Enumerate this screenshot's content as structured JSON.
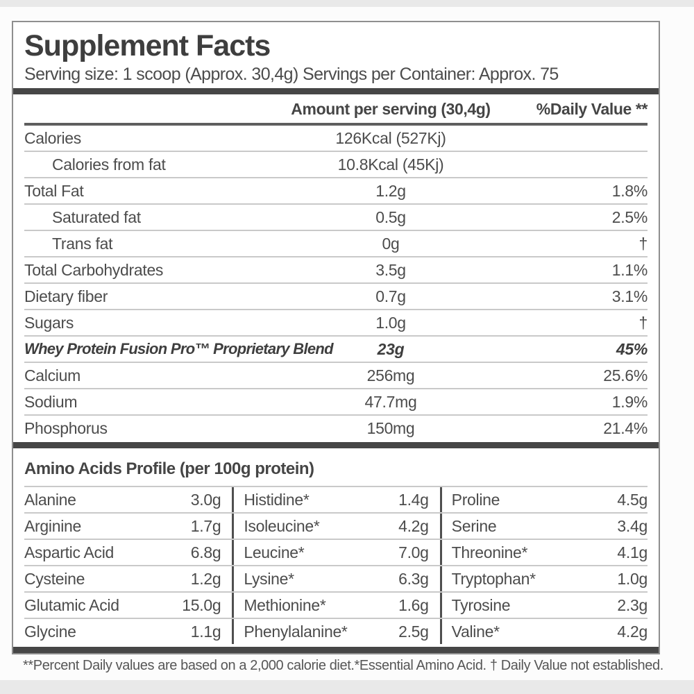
{
  "label": {
    "title": "Supplement Facts",
    "serving_line": "Serving size: 1 scoop (Approx. 30,4g) Servings per Container: Approx. 75",
    "columns": {
      "amount": "Amount per serving (30,4g)",
      "daily_value": "%Daily Value **"
    },
    "rows": [
      {
        "name": "Calories",
        "amount": "126Kcal (527Kj)",
        "dv": ""
      },
      {
        "name": "Calories from fat",
        "amount": "10.8Kcal (45Kj)",
        "dv": ""
      },
      {
        "name": "Total Fat",
        "amount": "1.2g",
        "dv": "1.8%"
      },
      {
        "name": "Saturated fat",
        "amount": "0.5g",
        "dv": "2.5%"
      },
      {
        "name": "Trans fat",
        "amount": "0g",
        "dv": "†"
      },
      {
        "name": "Total Carbohydrates",
        "amount": "3.5g",
        "dv": "1.1%"
      },
      {
        "name": "Dietary fiber",
        "amount": "0.7g",
        "dv": "3.1%"
      },
      {
        "name": "Sugars",
        "amount": "1.0g",
        "dv": "†"
      },
      {
        "name": "Whey Protein Fusion Pro™ Proprietary Blend",
        "amount": "23g",
        "dv": "45%"
      },
      {
        "name": "Calcium",
        "amount": "256mg",
        "dv": "25.6%"
      },
      {
        "name": "Sodium",
        "amount": "47.7mg",
        "dv": "1.9%"
      },
      {
        "name": "Phosphorus",
        "amount": "150mg",
        "dv": "21.4%"
      }
    ],
    "amino": {
      "heading": "Amino Acids Profile (per 100g protein)",
      "rows": [
        [
          {
            "n": "Alanine",
            "v": "3.0g"
          },
          {
            "n": "Histidine*",
            "v": "1.4g"
          },
          {
            "n": "Proline",
            "v": "4.5g"
          }
        ],
        [
          {
            "n": "Arginine",
            "v": "1.7g"
          },
          {
            "n": "Isoleucine*",
            "v": "4.2g"
          },
          {
            "n": "Serine",
            "v": "3.4g"
          }
        ],
        [
          {
            "n": "Aspartic Acid",
            "v": "6.8g"
          },
          {
            "n": "Leucine*",
            "v": "7.0g"
          },
          {
            "n": "Threonine*",
            "v": "4.1g"
          }
        ],
        [
          {
            "n": "Cysteine",
            "v": "1.2g"
          },
          {
            "n": "Lysine*",
            "v": "6.3g"
          },
          {
            "n": "Tryptophan*",
            "v": "1.0g"
          }
        ],
        [
          {
            "n": "Glutamic Acid",
            "v": "15.0g"
          },
          {
            "n": "Methionine*",
            "v": "1.6g"
          },
          {
            "n": "Tyrosine",
            "v": "2.3g"
          }
        ],
        [
          {
            "n": "Glycine",
            "v": "1.1g"
          },
          {
            "n": "Phenylalanine*",
            "v": "2.5g"
          },
          {
            "n": "Valine*",
            "v": "4.2g"
          }
        ]
      ]
    },
    "footnote": "**Percent Daily values are based on a 2,000 calorie diet.*Essential Amino Acid. † Daily Value not established.",
    "colors": {
      "ink": "#4c4c4c",
      "thick_bar": "#464646",
      "thin_divider": "#c9c9c9",
      "box_border": "#8f8f8f"
    }
  }
}
